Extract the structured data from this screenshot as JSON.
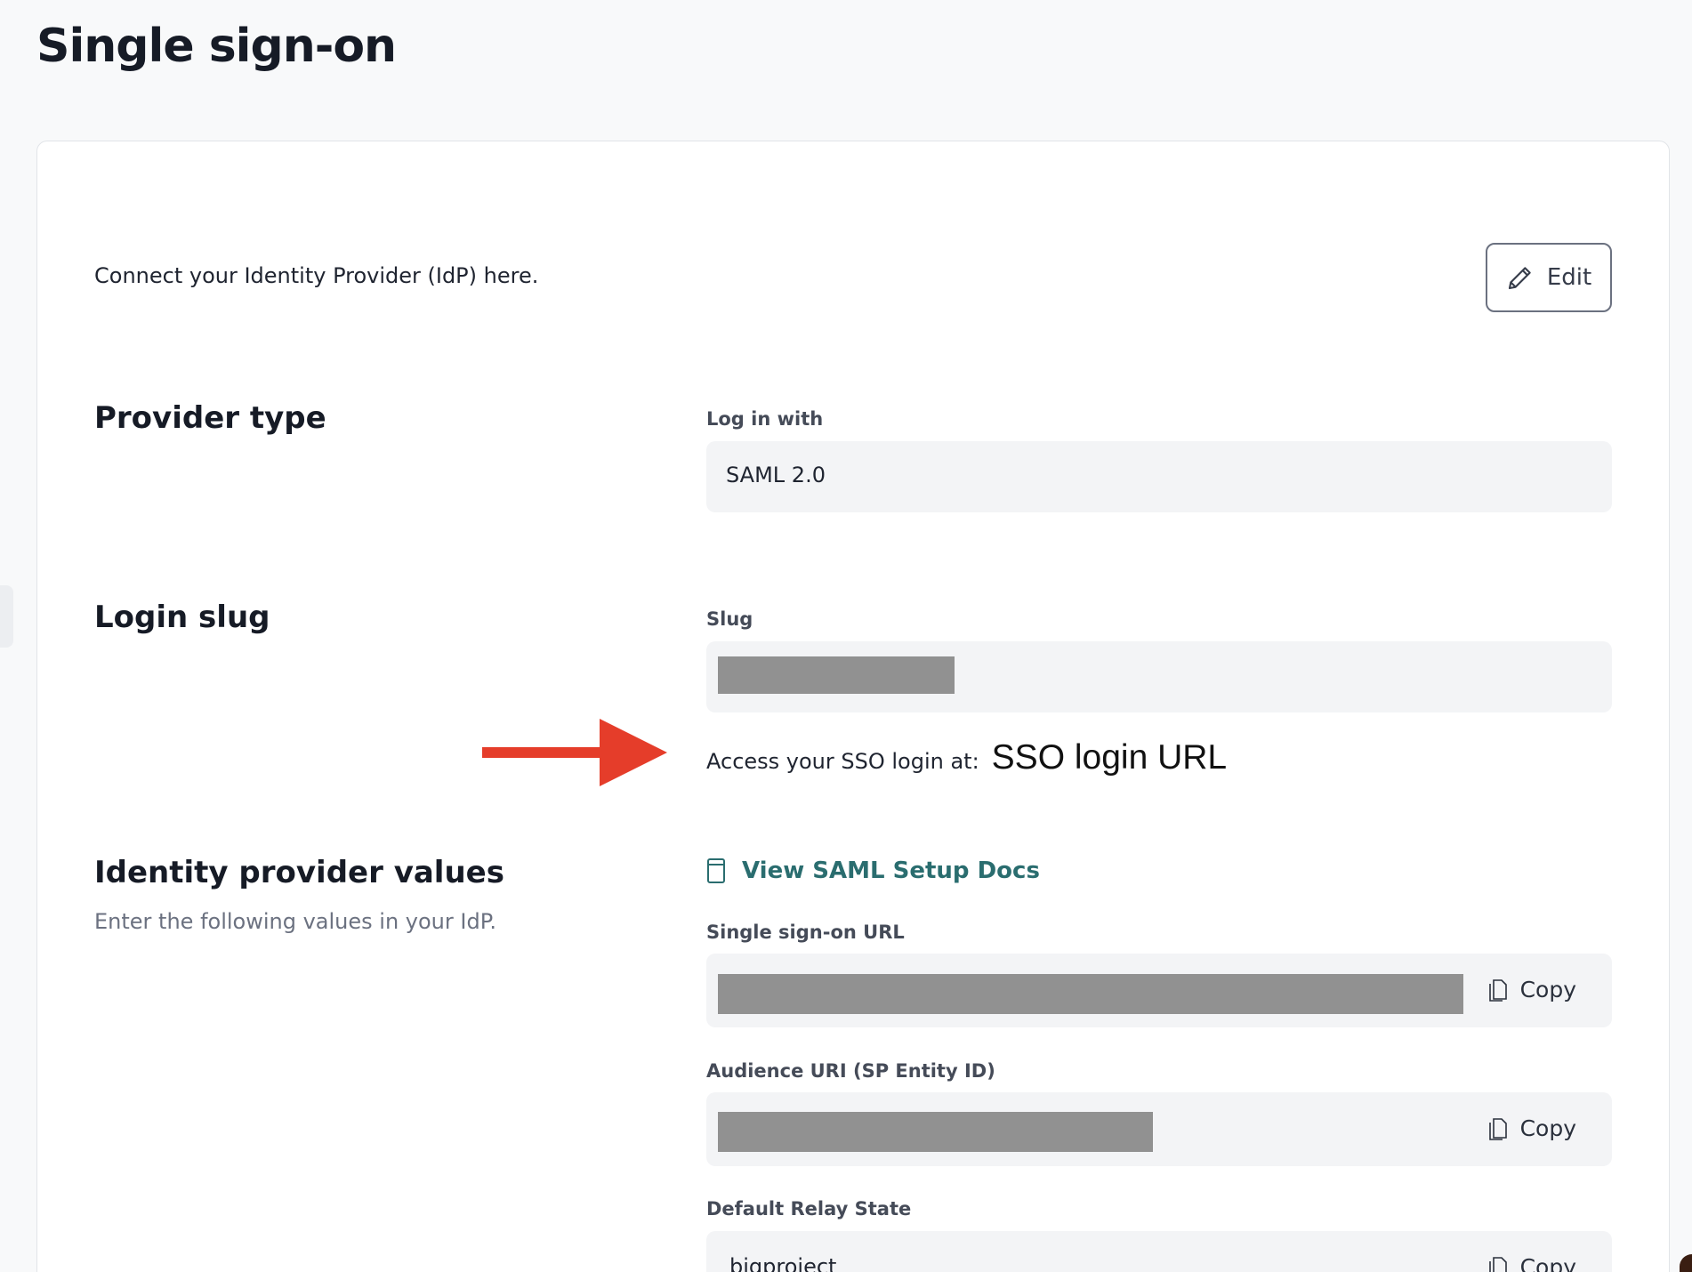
{
  "page": {
    "title": "Single sign-on"
  },
  "intro": {
    "text": "Connect your Identity Provider (IdP) here.",
    "edit_label": "Edit"
  },
  "provider": {
    "heading": "Provider type",
    "label": "Log in with",
    "value": "SAML 2.0"
  },
  "slug": {
    "heading": "Login slug",
    "label": "Slug",
    "value_redacted": true,
    "access_text": "Access your SSO login at:",
    "access_url": "SSO login URL"
  },
  "annotation": {
    "arrow_color": "#e53d2a"
  },
  "idp": {
    "heading": "Identity provider values",
    "subtitle": "Enter the following values in your IdP.",
    "docs_link": "View SAML Setup Docs",
    "fields": [
      {
        "label": "Single sign-on URL",
        "value_redacted": true,
        "copy_label": "Copy"
      },
      {
        "label": "Audience URI (SP Entity ID)",
        "value_redacted": true,
        "copy_label": "Copy"
      },
      {
        "label": "Default Relay State",
        "value": "bigproject",
        "copy_label": "Copy"
      }
    ]
  },
  "colors": {
    "link": "#2a6d6f",
    "field_bg": "#f3f4f6",
    "redaction": "#919191"
  }
}
